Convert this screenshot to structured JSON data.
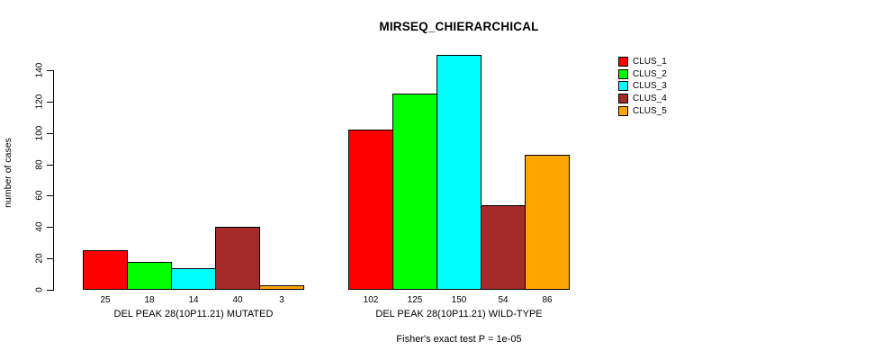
{
  "chart_data": {
    "type": "bar",
    "title": "MIRSEQ_CHIERARCHICAL",
    "ylabel": "number of cases",
    "xlabel": "",
    "ylim": [
      0,
      150
    ],
    "yticks": [
      0,
      20,
      40,
      60,
      80,
      100,
      120,
      140
    ],
    "grid": false,
    "legend_position": "right",
    "clusters": [
      {
        "name": "CLUS_1",
        "color": "#FF0000"
      },
      {
        "name": "CLUS_2",
        "color": "#00FF00"
      },
      {
        "name": "CLUS_3",
        "color": "#00FFFF"
      },
      {
        "name": "CLUS_4",
        "color": "#A52A2A"
      },
      {
        "name": "CLUS_5",
        "color": "#FFA500"
      }
    ],
    "groups": [
      {
        "label": "DEL PEAK 28(10P11.21) MUTATED",
        "values": [
          25,
          18,
          14,
          40,
          3
        ]
      },
      {
        "label": "DEL PEAK 28(10P11.21) WILD-TYPE",
        "values": [
          102,
          125,
          150,
          54,
          86
        ]
      }
    ],
    "annotation": "Fisher's exact test P = 1e-05"
  }
}
